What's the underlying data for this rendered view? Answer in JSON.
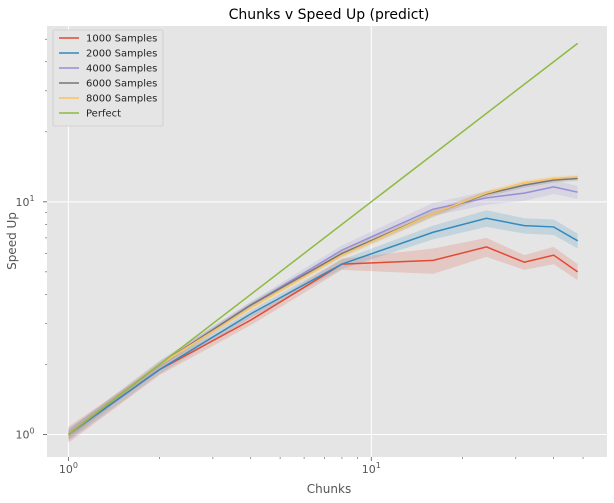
{
  "chart_data": {
    "type": "line",
    "title": "Chunks v Speed Up (predict)",
    "xlabel": "Chunks",
    "ylabel": "Speed Up",
    "xscale": "log",
    "yscale": "log",
    "xlim": [
      0.85,
      60
    ],
    "ylim": [
      0.8,
      57
    ],
    "x_ticks": [
      {
        "value": 1,
        "base": "10",
        "exp": "0"
      },
      {
        "value": 10,
        "base": "10",
        "exp": "1"
      }
    ],
    "y_ticks": [
      {
        "value": 1,
        "base": "10",
        "exp": "0"
      },
      {
        "value": 10,
        "base": "10",
        "exp": "1"
      }
    ],
    "grid": true,
    "legend_position": "top-left",
    "series": [
      {
        "name": "1000 Samples",
        "color": "#e24a33",
        "x": [
          1,
          2,
          4,
          8,
          16,
          24,
          32,
          40,
          48
        ],
        "y": [
          1.0,
          1.9,
          3.1,
          5.4,
          5.6,
          6.4,
          5.5,
          5.9,
          5.0
        ],
        "band": [
          0.08,
          0.1,
          0.15,
          0.3,
          0.7,
          0.6,
          0.4,
          0.5,
          0.4
        ]
      },
      {
        "name": "2000 Samples",
        "color": "#348abd",
        "x": [
          1,
          2,
          4,
          8,
          16,
          24,
          32,
          40,
          48
        ],
        "y": [
          1.0,
          1.9,
          3.3,
          5.4,
          7.4,
          8.5,
          7.9,
          7.8,
          6.8
        ],
        "band": [
          0.06,
          0.08,
          0.12,
          0.25,
          0.5,
          0.7,
          0.6,
          0.6,
          0.5
        ]
      },
      {
        "name": "4000 Samples",
        "color": "#988ed5",
        "x": [
          1,
          2,
          4,
          8,
          16,
          24,
          32,
          40,
          48
        ],
        "y": [
          1.0,
          2.0,
          3.6,
          6.2,
          9.3,
          10.4,
          10.9,
          11.6,
          11.0
        ],
        "band": [
          0.05,
          0.08,
          0.12,
          0.3,
          0.6,
          0.7,
          0.8,
          0.8,
          0.7
        ]
      },
      {
        "name": "6000 Samples",
        "color": "#777777",
        "x": [
          1,
          2,
          4,
          8,
          16,
          24,
          32,
          40,
          48
        ],
        "y": [
          1.0,
          2.0,
          3.6,
          6.0,
          8.9,
          10.8,
          11.8,
          12.4,
          12.6
        ],
        "band": [
          0.04,
          0.06,
          0.1,
          0.2,
          0.3,
          0.3,
          0.3,
          0.3,
          0.3
        ]
      },
      {
        "name": "8000 Samples",
        "color": "#fbc15e",
        "x": [
          1,
          2,
          4,
          8,
          16,
          24,
          32,
          40,
          48
        ],
        "y": [
          1.0,
          2.0,
          3.5,
          5.9,
          8.9,
          10.9,
          12.1,
          12.6,
          12.8
        ],
        "band": [
          0.04,
          0.06,
          0.1,
          0.2,
          0.3,
          0.3,
          0.3,
          0.3,
          0.3
        ]
      },
      {
        "name": "Perfect",
        "color": "#8eba42",
        "x": [
          1,
          48
        ],
        "y": [
          1,
          48
        ],
        "band": null
      }
    ]
  }
}
